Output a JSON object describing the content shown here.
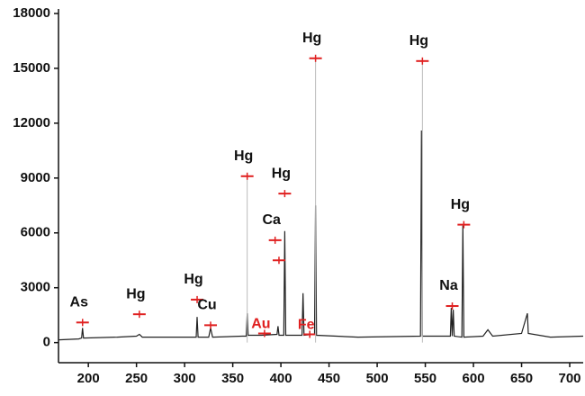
{
  "chart_data": {
    "type": "line",
    "xlim": [
      169,
      714
    ],
    "ylim": [
      -1100,
      18000
    ],
    "xticks": [
      200,
      250,
      300,
      350,
      400,
      450,
      500,
      550,
      600,
      650,
      700
    ],
    "yticks": [
      0,
      3000,
      6000,
      9000,
      12000,
      15000,
      18000
    ],
    "series": [
      {
        "color": "#222222",
        "x": [
          169,
          190,
          193,
          194,
          195,
          230,
          250,
          253,
          256,
          280,
          300,
          312,
          313,
          314,
          325,
          327,
          329,
          360,
          364,
          365,
          366,
          380,
          396,
          397,
          398,
          403,
          404,
          405,
          422,
          423,
          424,
          435,
          436,
          437,
          480,
          545,
          546,
          547,
          576,
          577,
          578,
          579,
          580,
          588,
          589,
          590,
          610,
          615,
          620,
          650,
          656,
          657,
          680,
          714
        ],
        "values": [
          150,
          200,
          250,
          800,
          250,
          300,
          350,
          450,
          300,
          300,
          300,
          300,
          1400,
          300,
          300,
          800,
          300,
          350,
          350,
          1600,
          400,
          400,
          450,
          900,
          400,
          400,
          6100,
          400,
          400,
          2700,
          400,
          450,
          7500,
          400,
          300,
          350,
          11600,
          350,
          350,
          1900,
          350,
          1800,
          350,
          300,
          6400,
          300,
          350,
          700,
          350,
          500,
          1600,
          500,
          300,
          350
        ]
      }
    ],
    "annotations": [
      {
        "label": "As",
        "x": 194,
        "y": 1100,
        "color": "#111111"
      },
      {
        "label": "Hg",
        "x": 253,
        "y": 1550,
        "color": "#111111"
      },
      {
        "label": "Hg",
        "x": 313,
        "y": 2350,
        "color": "#111111"
      },
      {
        "label": "Cu",
        "x": 327,
        "y": 950,
        "color": "#111111"
      },
      {
        "label": "Hg",
        "x": 365,
        "y": 9100,
        "color": "#111111",
        "stem": true
      },
      {
        "label": "Ca",
        "x": 394,
        "y": 5600,
        "color": "#111111"
      },
      {
        "x": 398,
        "y": 4500
      },
      {
        "label": "Hg",
        "x": 404,
        "y": 8150,
        "color": "#111111"
      },
      {
        "label": "Au",
        "x": 383,
        "y": 500,
        "color": "#e02020"
      },
      {
        "label": "Fe",
        "x": 430,
        "y": 450,
        "color": "#e02020"
      },
      {
        "label": "Hg",
        "x": 436,
        "y": 15550,
        "color": "#111111",
        "stem": true
      },
      {
        "label": "Hg",
        "x": 547,
        "y": 15400,
        "color": "#111111",
        "stem": true
      },
      {
        "label": "Na",
        "x": 578,
        "y": 2000,
        "color": "#111111"
      },
      {
        "label": "Hg",
        "x": 590,
        "y": 6450,
        "color": "#111111"
      }
    ]
  }
}
